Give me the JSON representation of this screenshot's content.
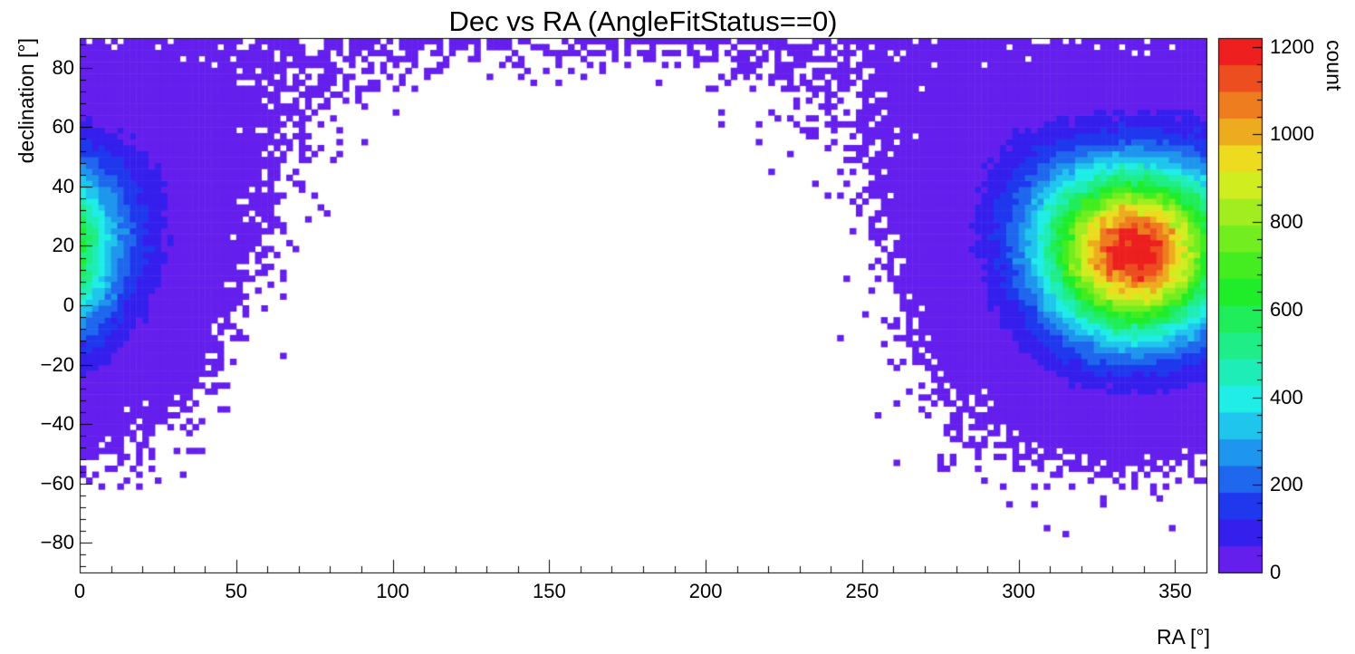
{
  "chart_data": {
    "type": "heatmap",
    "title": "Dec vs RA (AngleFitStatus==0)",
    "xlabel": "RA [°]",
    "ylabel": "declination [°]",
    "zlabel": "count",
    "xlim": [
      0,
      360
    ],
    "ylim": [
      -90,
      90
    ],
    "zlim": [
      0,
      1220
    ],
    "xticks": [
      0,
      50,
      100,
      150,
      200,
      250,
      300,
      350
    ],
    "x_minor_step": 10,
    "yticks": [
      -80,
      -60,
      -40,
      -20,
      0,
      20,
      40,
      60,
      80
    ],
    "y_minor_step": 4,
    "zticks": [
      0,
      200,
      400,
      600,
      800,
      1000,
      1200
    ],
    "z_minor_step": 40,
    "n_bins_x": 180,
    "n_bins_y": 90,
    "n_contours": 20,
    "palette": [
      "#641fed",
      "#351fed",
      "#1f38ed",
      "#1f67ed",
      "#1f96ed",
      "#1fc5ed",
      "#1fede6",
      "#1fedb7",
      "#1fed88",
      "#1fed59",
      "#1fed2a",
      "#43ed1f",
      "#72ed1f",
      "#a1ed1f",
      "#d0ed1f",
      "#eddb1f",
      "#edac1f",
      "#ed7d1f",
      "#ed4e1f",
      "#ed1f1f"
    ],
    "empty_bin_color": "#ffffff",
    "axis_color": "#000000",
    "text_color": "#000000",
    "colorbar_position": "right",
    "grid": false,
    "distribution": {
      "model": "spherical_gaussian_poisson",
      "description": "Event-count sky map: single Gaussian blob in angular distance centered at (RA 337°, Dec 18°), wrapping across RA 0°/360°; peak bin ≈ 1220 counts; zero-count bins drawn white leaving an empty band through RA ≈ 80°–230° at mid declinations; Poisson-sparse single-count bins scatter at the blob periphery and along the top (Dec ≈ 90°) edge",
      "center_ra_deg": 337,
      "center_dec_deg": 18,
      "sigma_deg": 19.5,
      "peak_count": 1220,
      "random_seed": 1234567
    }
  }
}
